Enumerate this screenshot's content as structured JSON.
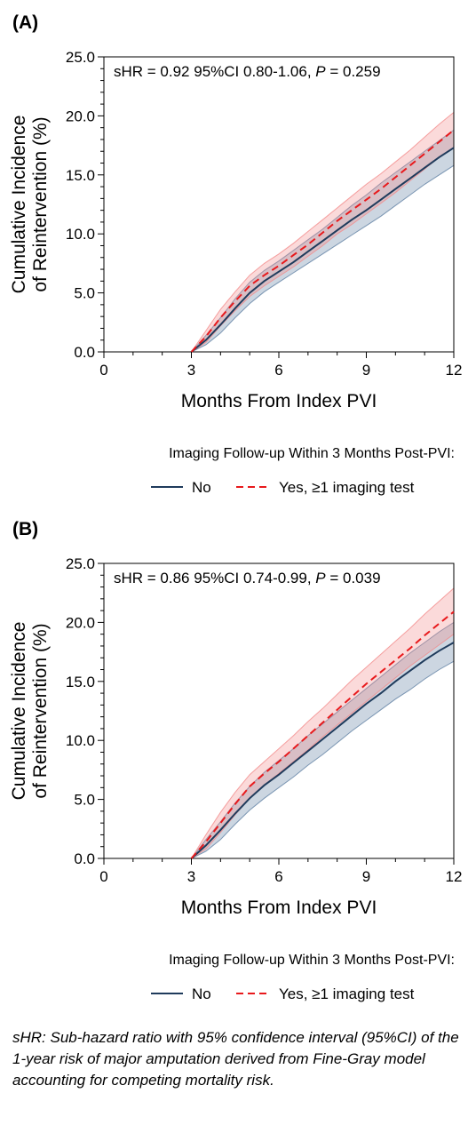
{
  "chart_data": [
    {
      "type": "line",
      "panel_label": "(A)",
      "annotation": {
        "prefix": "sHR = 0.92 95%CI 0.80-1.06, ",
        "p_symbol": "P",
        "suffix": " = 0.259"
      },
      "xlabel": "Months From Index PVI",
      "ylabel_lines": [
        "Cumulative Incidence",
        "of Reintervention (%)"
      ],
      "xlim": [
        0,
        12
      ],
      "ylim": [
        0,
        25
      ],
      "xticks": [
        0,
        3,
        6,
        9,
        12
      ],
      "xtick_labels": [
        "0",
        "3",
        "6",
        "9",
        "12"
      ],
      "yticks": [
        0,
        5,
        10,
        15,
        20,
        25
      ],
      "ytick_labels": [
        "0.0",
        "5.0",
        "10.0",
        "15.0",
        "20.0",
        "25.0"
      ],
      "legend_title": "Imaging Follow-up Within 3 Months Post-PVI:",
      "legend_placement": "bottom",
      "x": [
        3.0,
        3.5,
        4.0,
        4.5,
        5.0,
        5.5,
        6.0,
        6.5,
        7.0,
        7.5,
        8.0,
        8.5,
        9.0,
        9.5,
        10.0,
        10.5,
        11.0,
        11.5,
        12.0
      ],
      "series": [
        {
          "name": "No",
          "color": "#1f3b5c",
          "dash": "solid",
          "band_color": "#5f7fa3",
          "values": [
            0.0,
            1.0,
            2.3,
            3.7,
            5.0,
            6.0,
            6.8,
            7.6,
            8.5,
            9.4,
            10.3,
            11.2,
            12.0,
            12.9,
            13.8,
            14.7,
            15.6,
            16.5,
            17.3
          ],
          "lower": [
            0.0,
            0.6,
            1.6,
            2.9,
            4.1,
            5.1,
            5.9,
            6.7,
            7.5,
            8.3,
            9.1,
            9.9,
            10.7,
            11.5,
            12.4,
            13.3,
            14.2,
            15.0,
            15.8
          ],
          "upper": [
            0.0,
            1.4,
            2.9,
            4.5,
            5.9,
            6.9,
            7.7,
            8.6,
            9.5,
            10.4,
            11.4,
            12.4,
            13.3,
            14.3,
            15.2,
            16.1,
            17.0,
            17.9,
            18.8
          ]
        },
        {
          "name": "Yes, ≥1 imaging test",
          "color": "#e8191c",
          "dash": "dashed",
          "band_color": "#f28b8b",
          "values": [
            0.0,
            1.3,
            2.9,
            4.3,
            5.6,
            6.5,
            7.3,
            8.2,
            9.1,
            10.1,
            11.1,
            12.0,
            12.9,
            13.8,
            14.8,
            15.8,
            16.8,
            17.8,
            18.8
          ],
          "lower": [
            0.0,
            0.8,
            2.2,
            3.5,
            4.7,
            5.6,
            6.4,
            7.2,
            8.1,
            9.0,
            10.0,
            10.8,
            11.7,
            12.6,
            13.5,
            14.5,
            15.5,
            16.5,
            17.3
          ],
          "upper": [
            0.0,
            1.8,
            3.6,
            5.1,
            6.5,
            7.5,
            8.3,
            9.2,
            10.2,
            11.2,
            12.2,
            13.2,
            14.2,
            15.1,
            16.1,
            17.1,
            18.2,
            19.3,
            20.3
          ]
        }
      ]
    },
    {
      "type": "line",
      "panel_label": "(B)",
      "annotation": {
        "prefix": "sHR = 0.86 95%CI 0.74-0.99, ",
        "p_symbol": "P",
        "suffix": " = 0.039"
      },
      "xlabel": "Months From Index PVI",
      "ylabel_lines": [
        "Cumulative Incidence",
        "of Reintervention (%)"
      ],
      "xlim": [
        0,
        12
      ],
      "ylim": [
        0,
        25
      ],
      "xticks": [
        0,
        3,
        6,
        9,
        12
      ],
      "xtick_labels": [
        "0",
        "3",
        "6",
        "9",
        "12"
      ],
      "yticks": [
        0,
        5,
        10,
        15,
        20,
        25
      ],
      "ytick_labels": [
        "0.0",
        "5.0",
        "10.0",
        "15.0",
        "20.0",
        "25.0"
      ],
      "legend_title": "Imaging Follow-up Within 3 Months Post-PVI:",
      "legend_placement": "bottom",
      "x": [
        3.0,
        3.5,
        4.0,
        4.5,
        5.0,
        5.5,
        6.0,
        6.5,
        7.0,
        7.5,
        8.0,
        8.5,
        9.0,
        9.5,
        10.0,
        10.5,
        11.0,
        11.5,
        12.0
      ],
      "series": [
        {
          "name": "No",
          "color": "#1f3b5c",
          "dash": "solid",
          "band_color": "#5f7fa3",
          "values": [
            0.0,
            1.1,
            2.4,
            3.8,
            5.1,
            6.2,
            7.1,
            8.1,
            9.1,
            10.1,
            11.1,
            12.1,
            13.1,
            14.0,
            15.0,
            15.9,
            16.8,
            17.6,
            18.3
          ],
          "lower": [
            0.0,
            0.6,
            1.6,
            2.9,
            4.1,
            5.1,
            6.0,
            6.9,
            7.9,
            8.8,
            9.8,
            10.8,
            11.7,
            12.6,
            13.5,
            14.3,
            15.2,
            16.0,
            16.7
          ],
          "upper": [
            0.0,
            1.6,
            3.1,
            4.7,
            6.1,
            7.3,
            8.3,
            9.3,
            10.4,
            11.4,
            12.4,
            13.4,
            14.4,
            15.4,
            16.4,
            17.4,
            18.3,
            19.2,
            20.0
          ]
        },
        {
          "name": "Yes, ≥1 imaging test",
          "color": "#e8191c",
          "dash": "dashed",
          "band_color": "#f28b8b",
          "values": [
            0.0,
            1.4,
            3.0,
            4.6,
            6.1,
            7.2,
            8.2,
            9.3,
            10.4,
            11.5,
            12.6,
            13.7,
            14.8,
            15.8,
            16.8,
            17.8,
            18.9,
            19.9,
            20.9
          ],
          "lower": [
            0.0,
            0.8,
            2.2,
            3.7,
            5.1,
            6.2,
            7.2,
            8.2,
            9.2,
            10.3,
            11.3,
            12.3,
            13.3,
            14.3,
            15.3,
            16.3,
            17.2,
            18.1,
            19.0
          ],
          "upper": [
            0.0,
            2.0,
            3.9,
            5.6,
            7.1,
            8.2,
            9.3,
            10.4,
            11.6,
            12.7,
            13.9,
            15.1,
            16.2,
            17.3,
            18.4,
            19.5,
            20.7,
            21.8,
            22.9
          ]
        }
      ]
    }
  ],
  "footnote": "sHR: Sub-hazard ratio with 95% confidence interval (95%CI) of the 1-year risk of major amputation derived from Fine-Gray model accounting for competing mortality risk."
}
